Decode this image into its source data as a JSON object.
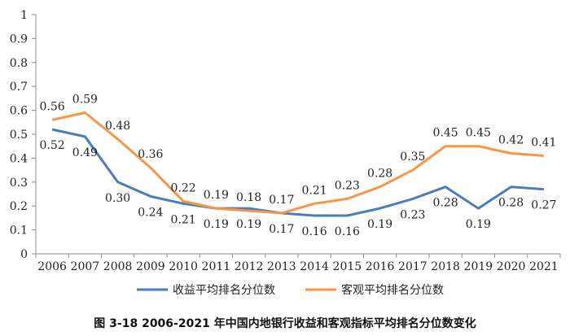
{
  "chart_data": {
    "type": "line",
    "title": "图 3-18 2006-2021 年中国内地银行收益和客观指标平均排名分位数变化",
    "xlabel": "",
    "ylabel": "",
    "ylim": [
      0,
      1
    ],
    "yticks": [
      "0",
      "0.1",
      "0.2",
      "0.3",
      "0.4",
      "0.5",
      "0.6",
      "0.7",
      "0.8",
      "0.9",
      "1"
    ],
    "categories": [
      "2006",
      "2007",
      "2008",
      "2009",
      "2010",
      "2011",
      "2012",
      "2013",
      "2014",
      "2015",
      "2016",
      "2017",
      "2018",
      "2019",
      "2020",
      "2021"
    ],
    "series": [
      {
        "name": "收益平均排名分位数",
        "color": "#4A7EBB",
        "values": [
          0.52,
          0.49,
          0.3,
          0.24,
          0.21,
          0.19,
          0.19,
          0.17,
          0.16,
          0.16,
          0.19,
          0.23,
          0.28,
          0.19,
          0.28,
          0.27
        ],
        "labels": [
          "0.52",
          "0.49",
          "0.30",
          "0.24",
          "0.21",
          "0.19",
          "0.19",
          "0.17",
          "0.16",
          "0.16",
          "0.19",
          "0.23",
          "0.28",
          "0.19",
          "0.28",
          "0.27"
        ]
      },
      {
        "name": "客观平均排名分位数",
        "color": "#F79646",
        "values": [
          0.56,
          0.59,
          0.48,
          0.36,
          0.22,
          0.19,
          0.18,
          0.17,
          0.21,
          0.23,
          0.28,
          0.35,
          0.45,
          0.45,
          0.42,
          0.41
        ],
        "labels": [
          "0.56",
          "0.59",
          "0.48",
          "0.36",
          "0.22",
          "0.19",
          "0.18",
          "0.17",
          "0.21",
          "0.23",
          "0.28",
          "0.35",
          "0.45",
          "0.45",
          "0.42",
          "0.41"
        ]
      }
    ],
    "legend_position": "bottom"
  }
}
